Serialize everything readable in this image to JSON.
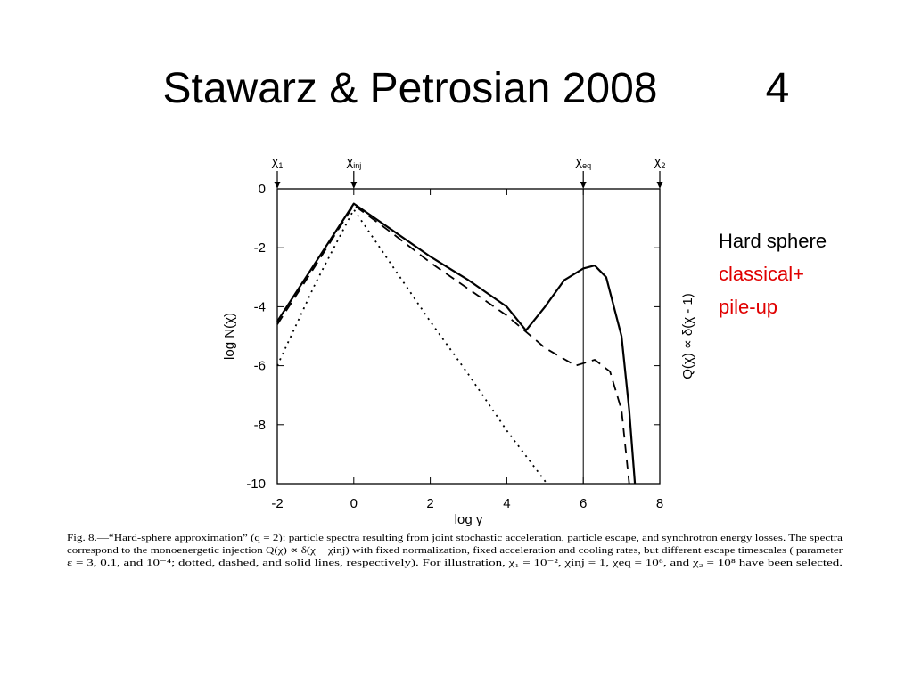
{
  "slide": {
    "title": "Stawarz & Petrosian 2008",
    "page": "4",
    "notes": [
      {
        "text": "Hard sphere",
        "color": "#000000"
      },
      {
        "text": "classical+",
        "color": "#e00000"
      },
      {
        "text": "pile-up",
        "color": "#e00000"
      }
    ]
  },
  "chart_data": {
    "type": "line",
    "x_label": "log γ",
    "y_label": "log N(χ)",
    "y2_label": "Q(χ) ∝ δ(χ - 1)",
    "xlim": [
      -2,
      8
    ],
    "ylim": [
      -10,
      0
    ],
    "xticks": [
      -2,
      0,
      2,
      4,
      6,
      8
    ],
    "yticks": [
      0,
      -2,
      -4,
      -6,
      -8,
      -10
    ],
    "annotations": [
      {
        "symbol": "χ",
        "sub": "1",
        "x": -2
      },
      {
        "symbol": "χ",
        "sub": "inj",
        "x": 0
      },
      {
        "symbol": "χ",
        "sub": "eq",
        "x": 6,
        "line": true
      },
      {
        "symbol": "χ",
        "sub": "2",
        "x": 8
      }
    ],
    "series": [
      {
        "style": "dotted",
        "color": "#000000",
        "x": [
          -2,
          -1,
          0,
          1,
          2,
          3,
          4,
          5.05
        ],
        "values": [
          -6,
          -3.2,
          -0.7,
          -2.6,
          -4.5,
          -6.3,
          -8.2,
          -10
        ]
      },
      {
        "style": "dashed",
        "color": "#000000",
        "x": [
          -2,
          -1,
          0,
          1,
          2,
          3,
          4,
          5,
          5.8,
          6.3,
          6.7,
          7,
          7.2
        ],
        "values": [
          -4.6,
          -2.6,
          -0.55,
          -1.5,
          -2.5,
          -3.4,
          -4.3,
          -5.4,
          -6.0,
          -5.8,
          -6.2,
          -7.5,
          -10
        ]
      },
      {
        "style": "solid",
        "color": "#000000",
        "x": [
          -2,
          -1,
          0,
          1,
          2,
          3,
          4,
          4.5,
          5,
          5.5,
          6,
          6.3,
          6.6,
          7,
          7.2,
          7.35
        ],
        "values": [
          -4.5,
          -2.5,
          -0.5,
          -1.4,
          -2.3,
          -3.1,
          -4.0,
          -4.8,
          -4.0,
          -3.1,
          -2.7,
          -2.6,
          -3.0,
          -5.0,
          -7.5,
          -10
        ]
      }
    ],
    "caption": [
      "Fig. 8.—“Hard-sphere approximation” (q = 2): particle spectra resulting from joint stochastic acceleration, particle escape, and synchrotron energy losses. The spectra",
      "correspond to the monoenergetic injection Q(χ) ∝ δ(χ − χinj) with fixed normalization, fixed acceleration and cooling rates, but different escape timescales ( parameter",
      "ε = 3, 0.1, and 10⁻⁴; dotted, dashed, and solid lines, respectively). For illustration, χ₁ = 10⁻², χinj = 1, χeq = 10⁶, and χ₂ = 10⁸ have been selected."
    ]
  }
}
